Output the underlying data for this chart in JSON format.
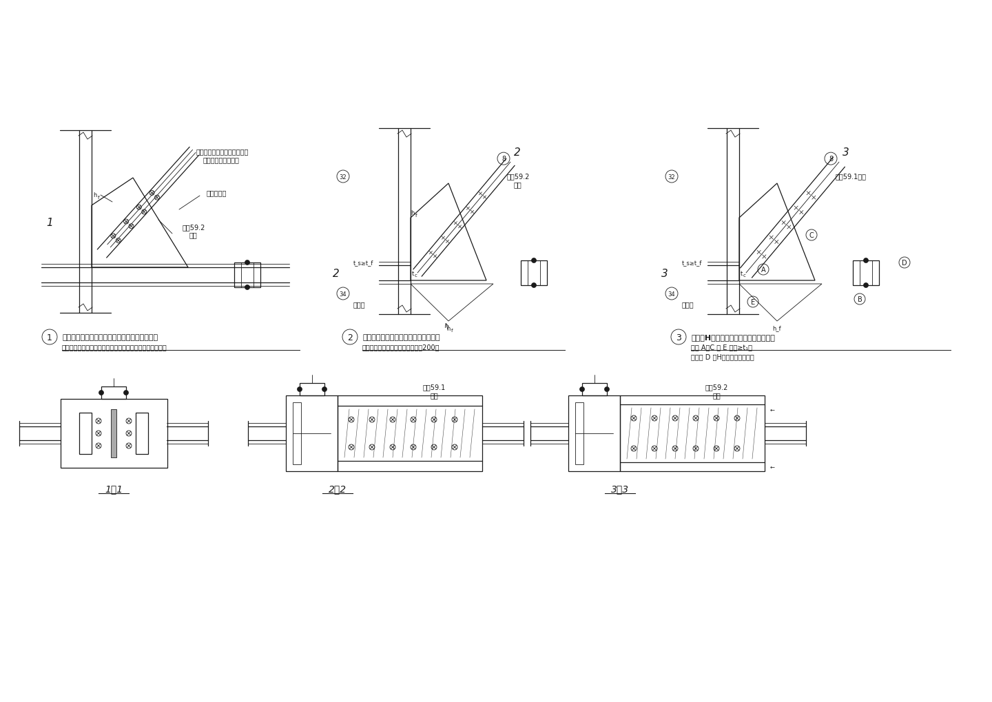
{
  "background_color": "#ffffff",
  "line_color": "#1a1a1a",
  "fig_width": 14.4,
  "fig_height": 10.2,
  "labels": {
    "diagram1_title": "斜杆为双槽钢或双角钢组合截面与节点板的连接",
    "diagram1_sub": "（组合角钢只宜用于承抗震波折结构中波受拉设计的斜杆）",
    "diagram2_title": "斜杆为工字形钢与工字形悬臂杆的连接",
    "diagram2_sub": "（注：斜杆中的圆篦半径不得小于200）",
    "diagram3_title": "斜杆为H型钢与工字形悬臂杆的转换连接",
    "diagram3_note1": "架号 A～C 及 E 板厚≥t₁；",
    "diagram3_note2": "架件号 D 为H型钢，同斜杆截面",
    "label_1_1": "1－1",
    "label_2_2": "2－2",
    "label_3_3": "3－3",
    "text_ref592": "参表59.2\n设置",
    "text_ref592b": "按表59.2\n设置",
    "text_ref591": "按表59.1设置",
    "text_gongzuoxian": "斜杆工作线",
    "text_jiaohewei1": "将组合角钢的第一列螺栓规线",
    "text_jiaohewei2": "置于斜杆的工作线上",
    "text_dianzuhan": "电渣焊",
    "num_circle_1": "1",
    "num_circle_2": "2",
    "num_circle_3": "3"
  }
}
